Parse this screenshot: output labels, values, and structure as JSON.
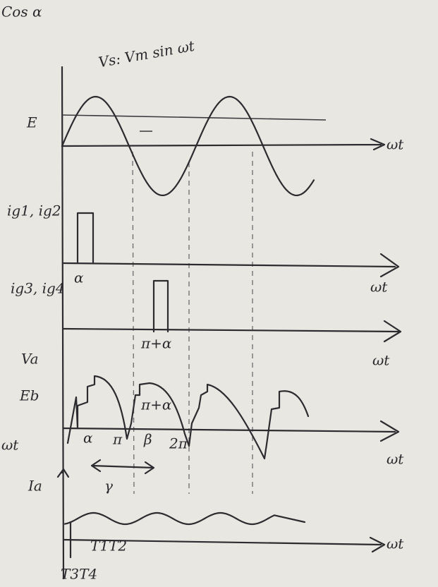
{
  "header": "Cos α",
  "supply": {
    "equation": "Vs: Vm sin ωt",
    "label": "E",
    "axis": "ωt"
  },
  "gate1": {
    "label": "ig1, ig2",
    "angle": "α",
    "axis": "ωt"
  },
  "gate2": {
    "label": "ig3, ig4",
    "angle": "π+α",
    "axis": "ωt"
  },
  "voltage": {
    "label": "Va",
    "emf": "Eb",
    "left_axis": "ωt",
    "marks": [
      "π+α",
      "α",
      "π",
      "β",
      "2π"
    ],
    "axis": "ωt",
    "span": "γ"
  },
  "current": {
    "label": "Ia",
    "axis": "ωt",
    "thyristors_top": "T1T2",
    "thyristors_bottom": "T3T4"
  }
}
